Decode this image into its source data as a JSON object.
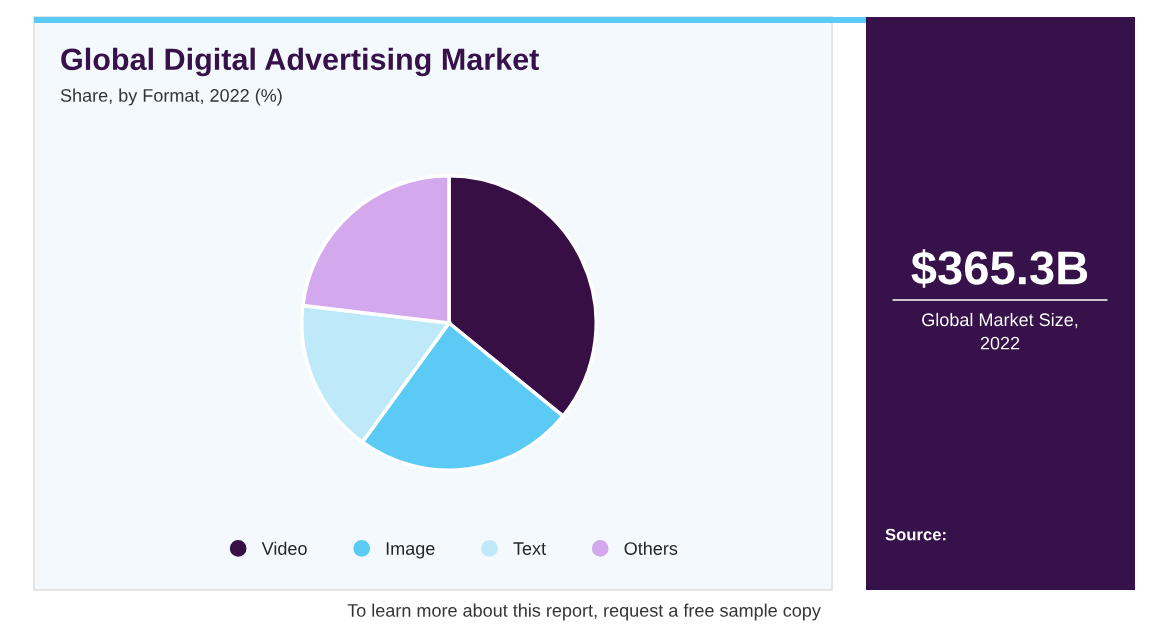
{
  "chart_data": {
    "type": "pie",
    "title": "Global Digital Advertising Market",
    "subtitle": "Share, by Format, 2022 (%)",
    "categories": [
      "Video",
      "Image",
      "Text",
      "Others"
    ],
    "values": [
      35.9,
      24.1,
      16.9,
      23.1
    ],
    "colors": [
      "#370f45",
      "#5bcbf5",
      "#bde9f9",
      "#d4a8ec"
    ],
    "legend": "bottom",
    "annotations": [
      "$365.3B",
      "Global Market Size,\n2022",
      "Source:",
      "To learn more about this report, request a free sample copy"
    ]
  }
}
